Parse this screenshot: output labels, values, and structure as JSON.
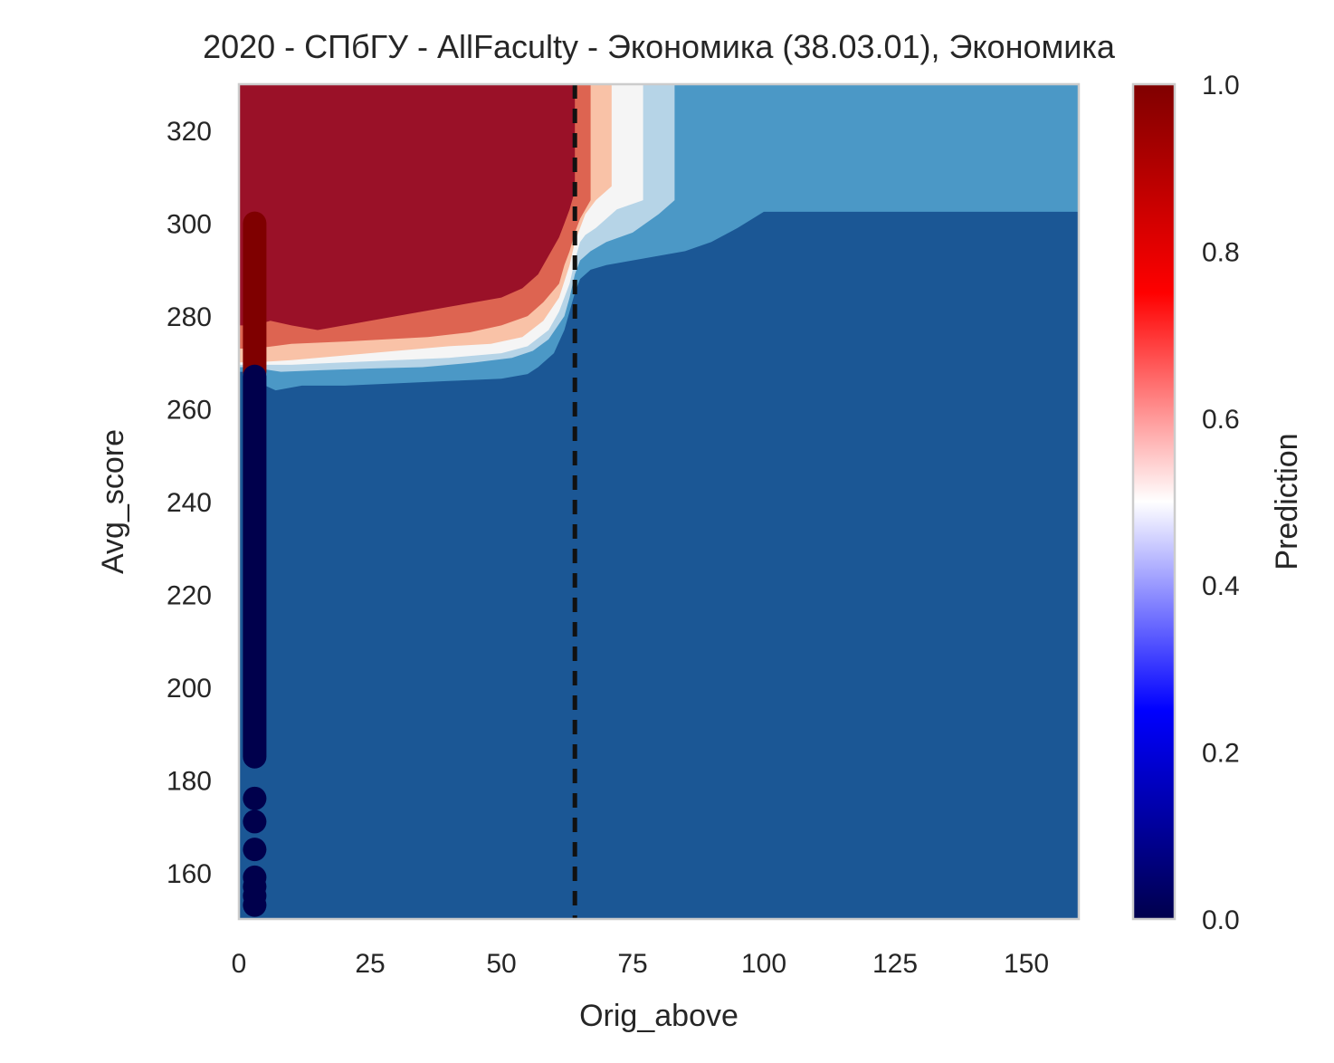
{
  "chart_data": {
    "type": "heatmap",
    "title": "2020 - СПбГУ - AllFaculty - Экономика (38.03.01), Экономика",
    "xlabel": "Orig_above",
    "ylabel": "Avg_score",
    "xlim": [
      0,
      160
    ],
    "ylim": [
      150,
      330
    ],
    "x_ticks": [
      0,
      25,
      50,
      75,
      100,
      125,
      150
    ],
    "y_ticks": [
      160,
      180,
      200,
      220,
      240,
      260,
      280,
      300,
      320
    ],
    "grid": false,
    "colorbar": {
      "label": "Prediction",
      "range": [
        0,
        1
      ],
      "ticks": [
        "0.0",
        "0.2",
        "0.4",
        "0.6",
        "0.8",
        "1.0"
      ],
      "colormap": "seismic"
    },
    "contour_levels": [
      0.0,
      0.15,
      0.3,
      0.45,
      0.6,
      0.75,
      0.9
    ],
    "contour_colors": [
      "#1b5795",
      "#4b98c6",
      "#b6d4e7",
      "#f5f5f5",
      "#f9c2a7",
      "#dd6451",
      "#9a1128"
    ],
    "contour_boundaries": [
      {
        "level": 0.15,
        "points": [
          [
            3,
            268
          ],
          [
            5,
            265
          ],
          [
            7,
            264
          ],
          [
            12,
            265
          ],
          [
            20,
            265
          ],
          [
            30,
            265.5
          ],
          [
            40,
            266
          ],
          [
            50,
            266.5
          ],
          [
            55,
            267.5
          ],
          [
            57,
            269
          ],
          [
            60,
            272
          ],
          [
            62,
            277
          ],
          [
            63,
            281
          ],
          [
            64,
            285
          ],
          [
            65,
            288
          ],
          [
            66,
            289
          ],
          [
            67,
            290
          ],
          [
            70,
            291
          ],
          [
            75,
            292
          ],
          [
            80,
            293
          ],
          [
            85,
            294
          ],
          [
            90,
            296
          ],
          [
            95,
            299
          ],
          [
            100,
            302.5
          ],
          [
            160,
            302.5
          ],
          [
            160,
            330
          ]
        ]
      },
      {
        "level": 0.3,
        "points": [
          [
            3,
            269
          ],
          [
            5,
            268.5
          ],
          [
            8,
            268
          ],
          [
            15,
            268.3
          ],
          [
            25,
            268.7
          ],
          [
            35,
            269
          ],
          [
            45,
            270
          ],
          [
            52,
            271
          ],
          [
            56,
            272.5
          ],
          [
            59,
            275
          ],
          [
            62,
            280
          ],
          [
            63,
            284
          ],
          [
            64,
            289
          ],
          [
            65,
            292
          ],
          [
            67,
            294
          ],
          [
            70,
            296
          ],
          [
            75,
            298
          ],
          [
            80,
            302
          ],
          [
            83,
            305
          ],
          [
            83,
            330
          ]
        ]
      },
      {
        "level": 0.45,
        "points": [
          [
            3,
            269.5
          ],
          [
            6,
            269.5
          ],
          [
            10,
            269.5
          ],
          [
            20,
            270
          ],
          [
            30,
            270.5
          ],
          [
            40,
            271
          ],
          [
            50,
            272
          ],
          [
            55,
            273.5
          ],
          [
            59,
            277
          ],
          [
            61,
            281
          ],
          [
            63,
            287
          ],
          [
            64,
            292
          ],
          [
            65,
            296
          ],
          [
            66,
            297.5
          ],
          [
            68,
            299
          ],
          [
            70,
            301
          ],
          [
            72,
            303
          ],
          [
            77,
            305
          ],
          [
            77,
            330
          ]
        ]
      },
      {
        "level": 0.6,
        "points": [
          [
            3,
            270
          ],
          [
            10,
            270.5
          ],
          [
            20,
            271.5
          ],
          [
            30,
            272.5
          ],
          [
            40,
            273.5
          ],
          [
            48,
            274
          ],
          [
            54,
            275.5
          ],
          [
            58,
            279
          ],
          [
            61,
            284
          ],
          [
            63,
            291
          ],
          [
            64,
            296
          ],
          [
            65,
            299
          ],
          [
            66,
            302
          ],
          [
            68,
            305
          ],
          [
            71,
            308
          ],
          [
            71,
            330
          ]
        ]
      },
      {
        "level": 0.75,
        "points": [
          [
            3,
            273
          ],
          [
            10,
            274
          ],
          [
            20,
            274.5
          ],
          [
            28,
            275
          ],
          [
            36,
            275.5
          ],
          [
            44,
            276.5
          ],
          [
            50,
            278
          ],
          [
            55,
            280
          ],
          [
            58,
            283
          ],
          [
            61,
            287
          ],
          [
            62,
            291
          ],
          [
            63,
            294
          ],
          [
            64,
            298
          ],
          [
            65,
            301
          ],
          [
            66,
            303
          ],
          [
            67,
            305
          ],
          [
            67,
            330
          ]
        ]
      },
      {
        "level": 0.9,
        "points": [
          [
            3,
            278
          ],
          [
            6,
            279
          ],
          [
            10,
            278
          ],
          [
            15,
            277
          ],
          [
            20,
            278
          ],
          [
            25,
            279
          ],
          [
            30,
            280
          ],
          [
            35,
            281
          ],
          [
            40,
            282
          ],
          [
            45,
            283
          ],
          [
            50,
            284
          ],
          [
            54,
            286
          ],
          [
            57,
            289
          ],
          [
            59,
            293
          ],
          [
            61,
            297
          ],
          [
            62,
            300
          ],
          [
            63,
            303
          ],
          [
            64,
            307
          ],
          [
            64,
            330
          ]
        ]
      }
    ],
    "vertical_line": {
      "x": 64,
      "style": "dashed",
      "color": "#111111"
    },
    "points": [
      {
        "x": 3,
        "y_from": 268,
        "y_to": 300,
        "value": 1
      },
      {
        "x": 3,
        "y_from": 185,
        "y_to": 267,
        "value": 0
      },
      {
        "x": 3,
        "y": 176,
        "value": 0
      },
      {
        "x": 3,
        "y": 171,
        "value": 0
      },
      {
        "x": 3,
        "y": 165,
        "value": 0
      },
      {
        "x": 3,
        "y": 159,
        "value": 0
      },
      {
        "x": 3,
        "y": 157,
        "value": 0
      },
      {
        "x": 3,
        "y": 155,
        "value": 0
      },
      {
        "x": 3,
        "y": 153,
        "value": 0
      }
    ]
  }
}
